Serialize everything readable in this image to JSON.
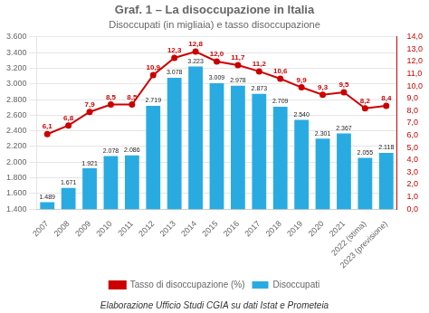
{
  "chart_data": {
    "type": "bar",
    "title": "Graf. 1 – La disoccupazione in Italia",
    "subtitle": "Disoccupati (in migliaia) e tasso disoccupazione",
    "annotations": [
      "Elaborazione Ufficio Studi CGIA su dati Istat e Prometeia"
    ],
    "categories": [
      "2007",
      "2008",
      "2009",
      "2010",
      "2011",
      "2012",
      "2013",
      "2014",
      "2015",
      "2016",
      "2017",
      "2018",
      "2019",
      "2020",
      "2021",
      "2022 (stima)",
      "2023 (previsione)"
    ],
    "series": [
      {
        "name": "Disoccupati",
        "type": "bar",
        "color": "#29abe2",
        "values": [
          1489,
          1671,
          1921,
          2078,
          2086,
          2719,
          3078,
          3223,
          3009,
          2978,
          2873,
          2709,
          2540,
          2301,
          2367,
          2055,
          2118
        ],
        "value_labels": [
          "1.489",
          "1.671",
          "1.921",
          "2.078",
          "2.086",
          "2.719",
          "3.078",
          "3.223",
          "3.009",
          "2.978",
          "2.873",
          "2.709",
          "2.540",
          "2.301",
          "2.367",
          "2.055",
          "2.118"
        ]
      },
      {
        "name": "Tasso di disoccupazione (%)",
        "type": "line",
        "color": "#cc0000",
        "marker": "circle",
        "axis": "y2",
        "values": [
          6.1,
          6.8,
          7.9,
          8.5,
          8.5,
          10.9,
          12.3,
          12.8,
          12.0,
          11.7,
          11.2,
          10.6,
          9.9,
          9.3,
          9.5,
          8.2,
          8.4
        ],
        "value_labels": [
          "6,1",
          "6,8",
          "7,9",
          "8,5",
          "8,5",
          "10,9",
          "12,3",
          "12,8",
          "12,0",
          "11,7",
          "11,2",
          "10,6",
          "9,9",
          "9,3",
          "9,5",
          "8,2",
          "8,4"
        ]
      }
    ],
    "ylim": [
      1400,
      3600
    ],
    "yticks": [
      {
        "value": 1400,
        "label": "1.400"
      },
      {
        "value": 1600,
        "label": "1.600"
      },
      {
        "value": 1800,
        "label": "1.800"
      },
      {
        "value": 2000,
        "label": "2.000"
      },
      {
        "value": 2200,
        "label": "2.200"
      },
      {
        "value": 2400,
        "label": "2.400"
      },
      {
        "value": 2600,
        "label": "2.600"
      },
      {
        "value": 2800,
        "label": "2.800"
      },
      {
        "value": 3000,
        "label": "3.000"
      },
      {
        "value": 3200,
        "label": "3.200"
      },
      {
        "value": 3400,
        "label": "3.400"
      },
      {
        "value": 3600,
        "label": "3.600"
      }
    ],
    "y2lim": [
      0.0,
      14.0
    ],
    "y2ticks": [
      {
        "value": 0,
        "label": "0,0"
      },
      {
        "value": 1,
        "label": "1,0"
      },
      {
        "value": 2,
        "label": "2,0"
      },
      {
        "value": 3,
        "label": "3,0"
      },
      {
        "value": 4,
        "label": "4,0"
      },
      {
        "value": 5,
        "label": "5,0"
      },
      {
        "value": 6,
        "label": "6,0"
      },
      {
        "value": 7,
        "label": "7,0"
      },
      {
        "value": 8,
        "label": "8,0"
      },
      {
        "value": 9,
        "label": "9,0"
      },
      {
        "value": 10,
        "label": "10,0"
      },
      {
        "value": 11,
        "label": "11,0"
      },
      {
        "value": 12,
        "label": "12,0"
      },
      {
        "value": 13,
        "label": "13,0"
      },
      {
        "value": 14,
        "label": "14,0"
      }
    ],
    "grid": true,
    "legend": "bottom",
    "data_labels": true
  }
}
